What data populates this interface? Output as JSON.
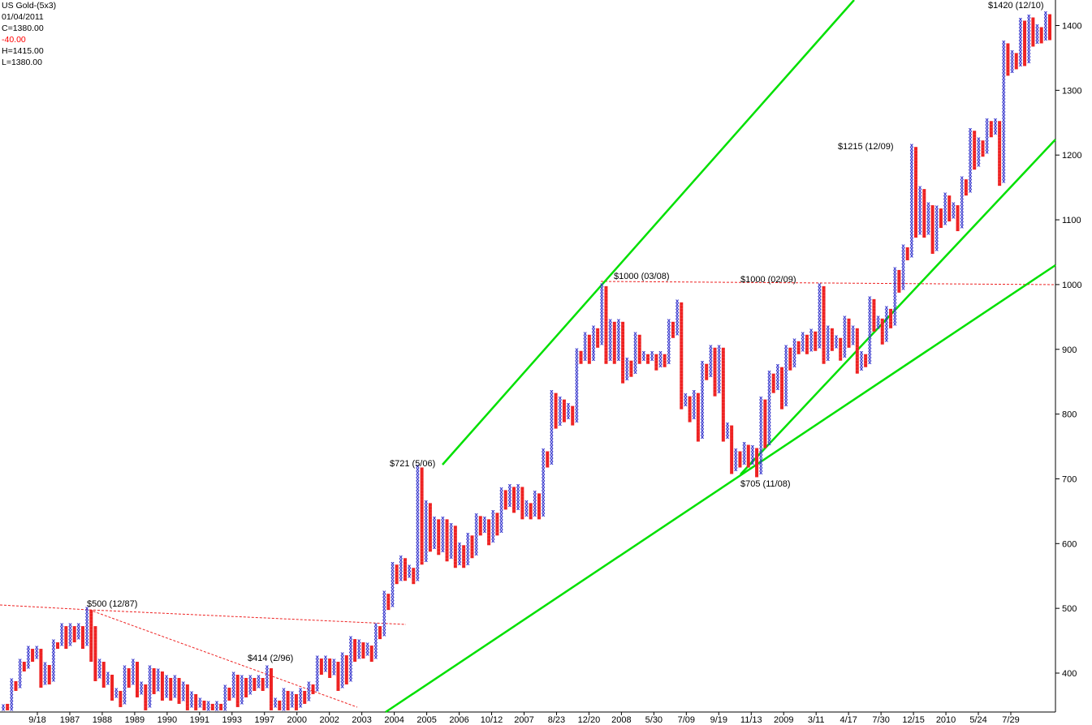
{
  "header": {
    "symbol": "US Gold-(5x3)",
    "date": "01/04/2011",
    "close": "C=1380.00",
    "change": "-40.00",
    "high": "H=1415.00",
    "low": "L=1380.00",
    "change_color": "#ff0000"
  },
  "colors": {
    "x_color": "#3333cc",
    "o_color": "#ee2222",
    "trend_color": "#00e000",
    "resistance_color": "#ee2222"
  },
  "chart_data": {
    "type": "point-and-figure",
    "box_size": 5,
    "reversal": 3,
    "ylim": [
      345,
      1440
    ],
    "y_ticks": [
      400,
      500,
      600,
      700,
      800,
      900,
      1000,
      1100,
      1200,
      1300,
      1400
    ],
    "x_tick_labels": [
      "9/18",
      "1987",
      "1988",
      "1989",
      "1990",
      "1991",
      "1993",
      "1997",
      "2000",
      "2002",
      "2003",
      "2004",
      "2005",
      "2006",
      "10/12",
      "2007",
      "8/23",
      "12/20",
      "2008",
      "5/30",
      "7/09",
      "9/19",
      "11/13",
      "2009",
      "3/11",
      "4/17",
      "7/30",
      "12/15",
      "2010",
      "5/24",
      "7/29"
    ],
    "annotations": [
      "$500  (12/87)",
      "$414  (2/96)",
      "$721  (5/06)",
      "$1000 (03/08)",
      "$1000 (02/09)",
      "$705 (11/08)",
      "$1215 (12/09)",
      "$1420 (12/10)"
    ],
    "columns": [
      {
        "t": "X",
        "lo": 345,
        "hi": 350
      },
      {
        "t": "O",
        "lo": 345,
        "hi": 350
      },
      {
        "t": "X",
        "lo": 345,
        "hi": 390
      },
      {
        "t": "O",
        "lo": 375,
        "hi": 385
      },
      {
        "t": "X",
        "lo": 380,
        "hi": 420
      },
      {
        "t": "O",
        "lo": 405,
        "hi": 415
      },
      {
        "t": "X",
        "lo": 410,
        "hi": 440
      },
      {
        "t": "O",
        "lo": 420,
        "hi": 435
      },
      {
        "t": "X",
        "lo": 425,
        "hi": 440
      },
      {
        "t": "O",
        "lo": 380,
        "hi": 435
      },
      {
        "t": "X",
        "lo": 385,
        "hi": 415
      },
      {
        "t": "O",
        "lo": 385,
        "hi": 410
      },
      {
        "t": "X",
        "lo": 390,
        "hi": 450
      },
      {
        "t": "O",
        "lo": 440,
        "hi": 445
      },
      {
        "t": "X",
        "lo": 445,
        "hi": 475
      },
      {
        "t": "O",
        "lo": 440,
        "hi": 470
      },
      {
        "t": "X",
        "lo": 445,
        "hi": 475
      },
      {
        "t": "O",
        "lo": 450,
        "hi": 470
      },
      {
        "t": "X",
        "lo": 455,
        "hi": 475
      },
      {
        "t": "O",
        "lo": 440,
        "hi": 470
      },
      {
        "t": "X",
        "lo": 445,
        "hi": 500
      },
      {
        "t": "O",
        "lo": 420,
        "hi": 495
      },
      {
        "t": "O",
        "lo": 390,
        "hi": 470
      },
      {
        "t": "X",
        "lo": 395,
        "hi": 420
      },
      {
        "t": "O",
        "lo": 380,
        "hi": 415
      },
      {
        "t": "X",
        "lo": 385,
        "hi": 400
      },
      {
        "t": "O",
        "lo": 360,
        "hi": 395
      },
      {
        "t": "X",
        "lo": 365,
        "hi": 375
      },
      {
        "t": "O",
        "lo": 350,
        "hi": 370
      },
      {
        "t": "X",
        "lo": 355,
        "hi": 410
      },
      {
        "t": "O",
        "lo": 380,
        "hi": 405
      },
      {
        "t": "X",
        "lo": 385,
        "hi": 420
      },
      {
        "t": "O",
        "lo": 365,
        "hi": 415
      },
      {
        "t": "X",
        "lo": 370,
        "hi": 385
      },
      {
        "t": "O",
        "lo": 345,
        "hi": 380
      },
      {
        "t": "X",
        "lo": 350,
        "hi": 410
      },
      {
        "t": "O",
        "lo": 370,
        "hi": 405
      },
      {
        "t": "X",
        "lo": 375,
        "hi": 405
      },
      {
        "t": "O",
        "lo": 360,
        "hi": 400
      },
      {
        "t": "X",
        "lo": 365,
        "hi": 395
      },
      {
        "t": "O",
        "lo": 360,
        "hi": 390
      },
      {
        "t": "X",
        "lo": 365,
        "hi": 395
      },
      {
        "t": "O",
        "lo": 355,
        "hi": 390
      },
      {
        "t": "X",
        "lo": 360,
        "hi": 385
      },
      {
        "t": "O",
        "lo": 345,
        "hi": 380
      },
      {
        "t": "X",
        "lo": 350,
        "hi": 370
      },
      {
        "t": "O",
        "lo": 345,
        "hi": 365
      },
      {
        "t": "X",
        "lo": 350,
        "hi": 360
      },
      {
        "t": "O",
        "lo": 345,
        "hi": 355
      },
      {
        "t": "X",
        "lo": 345,
        "hi": 355
      },
      {
        "t": "O",
        "lo": 345,
        "hi": 350
      },
      {
        "t": "X",
        "lo": 345,
        "hi": 355
      },
      {
        "t": "O",
        "lo": 345,
        "hi": 350
      },
      {
        "t": "X",
        "lo": 345,
        "hi": 380
      },
      {
        "t": "O",
        "lo": 360,
        "hi": 375
      },
      {
        "t": "X",
        "lo": 365,
        "hi": 400
      },
      {
        "t": "O",
        "lo": 350,
        "hi": 395
      },
      {
        "t": "X",
        "lo": 355,
        "hi": 395
      },
      {
        "t": "O",
        "lo": 365,
        "hi": 390
      },
      {
        "t": "X",
        "lo": 370,
        "hi": 395
      },
      {
        "t": "O",
        "lo": 375,
        "hi": 390
      },
      {
        "t": "X",
        "lo": 380,
        "hi": 395
      },
      {
        "t": "O",
        "lo": 375,
        "hi": 390
      },
      {
        "t": "X",
        "lo": 380,
        "hi": 410
      },
      {
        "t": "O",
        "lo": 345,
        "hi": 405
      },
      {
        "t": "X",
        "lo": 350,
        "hi": 360
      },
      {
        "t": "O",
        "lo": 345,
        "hi": 355
      },
      {
        "t": "X",
        "lo": 345,
        "hi": 375
      },
      {
        "t": "O",
        "lo": 345,
        "hi": 370
      },
      {
        "t": "X",
        "lo": 350,
        "hi": 370
      },
      {
        "t": "O",
        "lo": 345,
        "hi": 365
      },
      {
        "t": "X",
        "lo": 350,
        "hi": 375
      },
      {
        "t": "O",
        "lo": 355,
        "hi": 370
      },
      {
        "t": "X",
        "lo": 360,
        "hi": 385
      },
      {
        "t": "O",
        "lo": 370,
        "hi": 380
      },
      {
        "t": "X",
        "lo": 375,
        "hi": 425
      },
      {
        "t": "O",
        "lo": 400,
        "hi": 420
      },
      {
        "t": "X",
        "lo": 405,
        "hi": 425
      },
      {
        "t": "O",
        "lo": 395,
        "hi": 420
      },
      {
        "t": "X",
        "lo": 400,
        "hi": 420
      },
      {
        "t": "O",
        "lo": 375,
        "hi": 415
      },
      {
        "t": "X",
        "lo": 380,
        "hi": 430
      },
      {
        "t": "O",
        "lo": 385,
        "hi": 425
      },
      {
        "t": "X",
        "lo": 390,
        "hi": 455
      },
      {
        "t": "O",
        "lo": 420,
        "hi": 450
      },
      {
        "t": "X",
        "lo": 425,
        "hi": 450
      },
      {
        "t": "O",
        "lo": 425,
        "hi": 445
      },
      {
        "t": "X",
        "lo": 430,
        "hi": 445
      },
      {
        "t": "O",
        "lo": 420,
        "hi": 440
      },
      {
        "t": "X",
        "lo": 425,
        "hi": 475
      },
      {
        "t": "O",
        "lo": 455,
        "hi": 470
      },
      {
        "t": "X",
        "lo": 460,
        "hi": 525
      },
      {
        "t": "O",
        "lo": 500,
        "hi": 520
      },
      {
        "t": "X",
        "lo": 505,
        "hi": 570
      },
      {
        "t": "O",
        "lo": 540,
        "hi": 565
      },
      {
        "t": "X",
        "lo": 545,
        "hi": 580
      },
      {
        "t": "O",
        "lo": 545,
        "hi": 575
      },
      {
        "t": "X",
        "lo": 550,
        "hi": 565
      },
      {
        "t": "O",
        "lo": 540,
        "hi": 560
      },
      {
        "t": "X",
        "lo": 545,
        "hi": 720
      },
      {
        "t": "O",
        "lo": 570,
        "hi": 715
      },
      {
        "t": "X",
        "lo": 575,
        "hi": 665
      },
      {
        "t": "O",
        "lo": 590,
        "hi": 660
      },
      {
        "t": "X",
        "lo": 595,
        "hi": 640
      },
      {
        "t": "O",
        "lo": 585,
        "hi": 635
      },
      {
        "t": "X",
        "lo": 590,
        "hi": 640
      },
      {
        "t": "O",
        "lo": 575,
        "hi": 635
      },
      {
        "t": "X",
        "lo": 580,
        "hi": 630
      },
      {
        "t": "O",
        "lo": 565,
        "hi": 625
      },
      {
        "t": "X",
        "lo": 570,
        "hi": 600
      },
      {
        "t": "O",
        "lo": 565,
        "hi": 595
      },
      {
        "t": "X",
        "lo": 570,
        "hi": 615
      },
      {
        "t": "O",
        "lo": 580,
        "hi": 610
      },
      {
        "t": "X",
        "lo": 585,
        "hi": 645
      },
      {
        "t": "O",
        "lo": 615,
        "hi": 640
      },
      {
        "t": "X",
        "lo": 620,
        "hi": 640
      },
      {
        "t": "O",
        "lo": 600,
        "hi": 635
      },
      {
        "t": "X",
        "lo": 605,
        "hi": 650
      },
      {
        "t": "O",
        "lo": 615,
        "hi": 645
      },
      {
        "t": "X",
        "lo": 620,
        "hi": 685
      },
      {
        "t": "O",
        "lo": 655,
        "hi": 680
      },
      {
        "t": "X",
        "lo": 660,
        "hi": 690
      },
      {
        "t": "O",
        "lo": 650,
        "hi": 685
      },
      {
        "t": "X",
        "lo": 655,
        "hi": 690
      },
      {
        "t": "O",
        "lo": 640,
        "hi": 685
      },
      {
        "t": "X",
        "lo": 645,
        "hi": 665
      },
      {
        "t": "O",
        "lo": 640,
        "hi": 660
      },
      {
        "t": "X",
        "lo": 645,
        "hi": 680
      },
      {
        "t": "O",
        "lo": 640,
        "hi": 675
      },
      {
        "t": "X",
        "lo": 645,
        "hi": 745
      },
      {
        "t": "O",
        "lo": 720,
        "hi": 740
      },
      {
        "t": "X",
        "lo": 725,
        "hi": 835
      },
      {
        "t": "O",
        "lo": 780,
        "hi": 830
      },
      {
        "t": "X",
        "lo": 785,
        "hi": 825
      },
      {
        "t": "O",
        "lo": 790,
        "hi": 820
      },
      {
        "t": "X",
        "lo": 795,
        "hi": 815
      },
      {
        "t": "O",
        "lo": 785,
        "hi": 810
      },
      {
        "t": "X",
        "lo": 790,
        "hi": 900
      },
      {
        "t": "O",
        "lo": 880,
        "hi": 895
      },
      {
        "t": "X",
        "lo": 885,
        "hi": 925
      },
      {
        "t": "O",
        "lo": 880,
        "hi": 920
      },
      {
        "t": "X",
        "lo": 885,
        "hi": 935
      },
      {
        "t": "O",
        "lo": 905,
        "hi": 930
      },
      {
        "t": "X",
        "lo": 910,
        "hi": 1000
      },
      {
        "t": "O",
        "lo": 880,
        "hi": 995
      },
      {
        "t": "X",
        "lo": 885,
        "hi": 945
      },
      {
        "t": "O",
        "lo": 880,
        "hi": 940
      },
      {
        "t": "X",
        "lo": 885,
        "hi": 945
      },
      {
        "t": "O",
        "lo": 850,
        "hi": 940
      },
      {
        "t": "X",
        "lo": 855,
        "hi": 885
      },
      {
        "t": "O",
        "lo": 860,
        "hi": 880
      },
      {
        "t": "X",
        "lo": 865,
        "hi": 925
      },
      {
        "t": "O",
        "lo": 880,
        "hi": 920
      },
      {
        "t": "X",
        "lo": 885,
        "hi": 895
      },
      {
        "t": "O",
        "lo": 880,
        "hi": 890
      },
      {
        "t": "X",
        "lo": 885,
        "hi": 895
      },
      {
        "t": "O",
        "lo": 870,
        "hi": 890
      },
      {
        "t": "X",
        "lo": 875,
        "hi": 895
      },
      {
        "t": "O",
        "lo": 875,
        "hi": 890
      },
      {
        "t": "X",
        "lo": 880,
        "hi": 945
      },
      {
        "t": "O",
        "lo": 920,
        "hi": 940
      },
      {
        "t": "X",
        "lo": 925,
        "hi": 975
      },
      {
        "t": "O",
        "lo": 810,
        "hi": 970
      },
      {
        "t": "X",
        "lo": 815,
        "hi": 830
      },
      {
        "t": "O",
        "lo": 790,
        "hi": 825
      },
      {
        "t": "X",
        "lo": 795,
        "hi": 835
      },
      {
        "t": "O",
        "lo": 760,
        "hi": 830
      },
      {
        "t": "X",
        "lo": 765,
        "hi": 880
      },
      {
        "t": "O",
        "lo": 855,
        "hi": 875
      },
      {
        "t": "X",
        "lo": 860,
        "hi": 905
      },
      {
        "t": "O",
        "lo": 830,
        "hi": 900
      },
      {
        "t": "X",
        "lo": 835,
        "hi": 905
      },
      {
        "t": "O",
        "lo": 760,
        "hi": 900
      },
      {
        "t": "X",
        "lo": 765,
        "hi": 785
      },
      {
        "t": "O",
        "lo": 710,
        "hi": 780
      },
      {
        "t": "X",
        "lo": 715,
        "hi": 745
      },
      {
        "t": "O",
        "lo": 720,
        "hi": 740
      },
      {
        "t": "X",
        "lo": 725,
        "hi": 755
      },
      {
        "t": "O",
        "lo": 720,
        "hi": 750
      },
      {
        "t": "X",
        "lo": 725,
        "hi": 750
      },
      {
        "t": "O",
        "lo": 705,
        "hi": 745
      },
      {
        "t": "X",
        "lo": 710,
        "hi": 825
      },
      {
        "t": "O",
        "lo": 750,
        "hi": 820
      },
      {
        "t": "X",
        "lo": 755,
        "hi": 865
      },
      {
        "t": "O",
        "lo": 835,
        "hi": 860
      },
      {
        "t": "X",
        "lo": 840,
        "hi": 875
      },
      {
        "t": "O",
        "lo": 810,
        "hi": 870
      },
      {
        "t": "X",
        "lo": 815,
        "hi": 905
      },
      {
        "t": "O",
        "lo": 870,
        "hi": 900
      },
      {
        "t": "X",
        "lo": 875,
        "hi": 915
      },
      {
        "t": "O",
        "lo": 895,
        "hi": 910
      },
      {
        "t": "X",
        "lo": 900,
        "hi": 925
      },
      {
        "t": "O",
        "lo": 895,
        "hi": 920
      },
      {
        "t": "X",
        "lo": 900,
        "hi": 930
      },
      {
        "t": "O",
        "lo": 900,
        "hi": 925
      },
      {
        "t": "X",
        "lo": 905,
        "hi": 1000
      },
      {
        "t": "O",
        "lo": 880,
        "hi": 995
      },
      {
        "t": "X",
        "lo": 885,
        "hi": 935
      },
      {
        "t": "O",
        "lo": 900,
        "hi": 930
      },
      {
        "t": "X",
        "lo": 905,
        "hi": 920
      },
      {
        "t": "O",
        "lo": 885,
        "hi": 915
      },
      {
        "t": "X",
        "lo": 890,
        "hi": 950
      },
      {
        "t": "O",
        "lo": 905,
        "hi": 945
      },
      {
        "t": "X",
        "lo": 910,
        "hi": 935
      },
      {
        "t": "O",
        "lo": 865,
        "hi": 930
      },
      {
        "t": "X",
        "lo": 870,
        "hi": 895
      },
      {
        "t": "O",
        "lo": 875,
        "hi": 890
      },
      {
        "t": "X",
        "lo": 880,
        "hi": 980
      },
      {
        "t": "O",
        "lo": 930,
        "hi": 975
      },
      {
        "t": "X",
        "lo": 935,
        "hi": 950
      },
      {
        "t": "O",
        "lo": 910,
        "hi": 945
      },
      {
        "t": "X",
        "lo": 915,
        "hi": 965
      },
      {
        "t": "O",
        "lo": 935,
        "hi": 960
      },
      {
        "t": "X",
        "lo": 940,
        "hi": 1025
      },
      {
        "t": "O",
        "lo": 990,
        "hi": 1020
      },
      {
        "t": "X",
        "lo": 995,
        "hi": 1060
      },
      {
        "t": "O",
        "lo": 1040,
        "hi": 1055
      },
      {
        "t": "X",
        "lo": 1045,
        "hi": 1215
      },
      {
        "t": "O",
        "lo": 1075,
        "hi": 1210
      },
      {
        "t": "X",
        "lo": 1080,
        "hi": 1150
      },
      {
        "t": "O",
        "lo": 1075,
        "hi": 1145
      },
      {
        "t": "X",
        "lo": 1080,
        "hi": 1125
      },
      {
        "t": "O",
        "lo": 1050,
        "hi": 1120
      },
      {
        "t": "X",
        "lo": 1055,
        "hi": 1120
      },
      {
        "t": "O",
        "lo": 1090,
        "hi": 1115
      },
      {
        "t": "X",
        "lo": 1095,
        "hi": 1140
      },
      {
        "t": "O",
        "lo": 1100,
        "hi": 1135
      },
      {
        "t": "X",
        "lo": 1105,
        "hi": 1125
      },
      {
        "t": "O",
        "lo": 1085,
        "hi": 1120
      },
      {
        "t": "X",
        "lo": 1090,
        "hi": 1165
      },
      {
        "t": "O",
        "lo": 1140,
        "hi": 1160
      },
      {
        "t": "X",
        "lo": 1145,
        "hi": 1240
      },
      {
        "t": "O",
        "lo": 1180,
        "hi": 1235
      },
      {
        "t": "X",
        "lo": 1185,
        "hi": 1225
      },
      {
        "t": "O",
        "lo": 1200,
        "hi": 1220
      },
      {
        "t": "X",
        "lo": 1205,
        "hi": 1255
      },
      {
        "t": "O",
        "lo": 1230,
        "hi": 1250
      },
      {
        "t": "X",
        "lo": 1235,
        "hi": 1255
      },
      {
        "t": "O",
        "lo": 1155,
        "hi": 1250
      },
      {
        "t": "X",
        "lo": 1160,
        "hi": 1375
      },
      {
        "t": "O",
        "lo": 1325,
        "hi": 1370
      },
      {
        "t": "X",
        "lo": 1330,
        "hi": 1360
      },
      {
        "t": "O",
        "lo": 1335,
        "hi": 1355
      },
      {
        "t": "X",
        "lo": 1340,
        "hi": 1410
      },
      {
        "t": "O",
        "lo": 1340,
        "hi": 1405
      },
      {
        "t": "X",
        "lo": 1345,
        "hi": 1415
      },
      {
        "t": "O",
        "lo": 1370,
        "hi": 1410
      },
      {
        "t": "X",
        "lo": 1375,
        "hi": 1400
      },
      {
        "t": "O",
        "lo": 1375,
        "hi": 1395
      },
      {
        "t": "X",
        "lo": 1380,
        "hi": 1420
      },
      {
        "t": "O",
        "lo": 1380,
        "hi": 1415
      }
    ]
  }
}
